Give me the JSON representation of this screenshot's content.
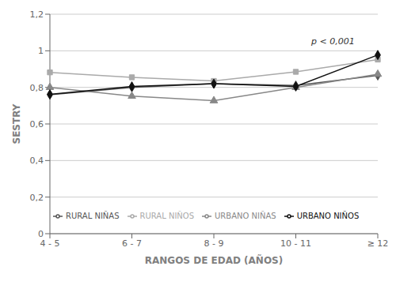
{
  "chart_data": {
    "type": "line",
    "xlabel": "RANGOS DE EDAD (AÑOS)",
    "ylabel": "SESTRY",
    "categories": [
      "4 - 5",
      "6 - 7",
      "8 - 9",
      "10 - 11",
      "≥ 12"
    ],
    "series": [
      {
        "name": "RURAL NIÑAS",
        "color": "#555555",
        "marker": "diamond",
        "line_style": "solid",
        "values": [
          0.76,
          0.8,
          0.82,
          0.81,
          0.865
        ]
      },
      {
        "name": "RURAL NIÑOS",
        "color": "#aaaaaa",
        "marker": "square",
        "line_style": "solid",
        "values": [
          0.882,
          0.855,
          0.835,
          0.885,
          0.952
        ]
      },
      {
        "name": "URBANO NIÑAS",
        "color": "#888888",
        "marker": "triangle",
        "line_style": "solid",
        "values": [
          0.8,
          0.752,
          0.727,
          0.8,
          0.872
        ]
      },
      {
        "name": "URBANO NIÑOS",
        "color": "#111111",
        "marker": "diamond",
        "line_style": "solid",
        "values": [
          0.762,
          0.805,
          0.82,
          0.805,
          0.977
        ]
      }
    ],
    "ylim": [
      0,
      1.2
    ],
    "yticks": [
      0,
      {
        "value": 0.2,
        "label": "0,2"
      },
      {
        "value": 0.4,
        "label": "0,4"
      },
      {
        "value": 0.6,
        "label": "0,6"
      },
      {
        "value": 0.8,
        "label": "0,8"
      },
      1,
      {
        "value": 1.2,
        "label": "1,2"
      }
    ],
    "annotations": [
      {
        "text": "p < 0,001"
      }
    ],
    "grid": true,
    "legend": "lower left"
  }
}
